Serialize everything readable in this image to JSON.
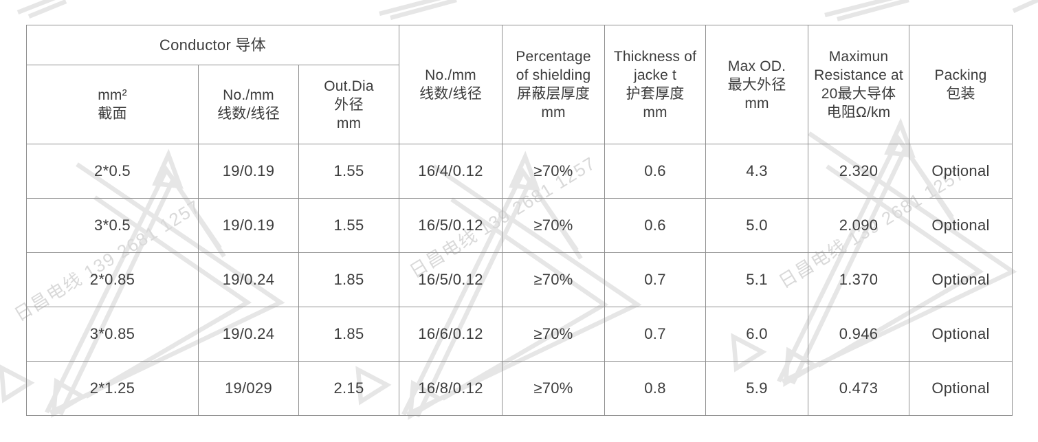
{
  "watermark": {
    "text": "日昌电线 139 2681 1257",
    "line_color": "#e6e6e6",
    "text_color": "#d9d9d9"
  },
  "table": {
    "border_color": "#8f8f8f",
    "text_color": "#3c3c3c",
    "header": {
      "conductor_group": "Conductor 导体",
      "columns": [
        {
          "lines": [
            "mm²",
            "截面"
          ]
        },
        {
          "lines": [
            "No./mm",
            "线数/线径"
          ]
        },
        {
          "lines": [
            "Out.Dia",
            "外径",
            "mm"
          ]
        },
        {
          "lines": [
            "No./mm",
            "线数/线径"
          ]
        },
        {
          "lines": [
            "Percentage",
            "of shielding",
            "屏蔽层厚度",
            "mm"
          ]
        },
        {
          "lines": [
            "Thickness of",
            "jacke t",
            "护套厚度",
            "mm"
          ]
        },
        {
          "lines": [
            "Max OD.",
            "最大外径",
            "mm"
          ]
        },
        {
          "lines": [
            "Maximun",
            "Resistance at",
            "20最大导体",
            "电阻Ω/km"
          ]
        },
        {
          "lines": [
            "Packing",
            "包装"
          ]
        }
      ]
    },
    "rows": [
      [
        "2*0.5",
        "19/0.19",
        "1.55",
        "16/4/0.12",
        "≥70%",
        "0.6",
        "4.3",
        "2.320",
        "Optional"
      ],
      [
        "3*0.5",
        "19/0.19",
        "1.55",
        "16/5/0.12",
        "≥70%",
        "0.6",
        "5.0",
        "2.090",
        "Optional"
      ],
      [
        "2*0.85",
        "19/0.24",
        "1.85",
        "16/5/0.12",
        "≥70%",
        "0.7",
        "5.1",
        "1.370",
        "Optional"
      ],
      [
        "3*0.85",
        "19/0.24",
        "1.85",
        "16/6/0.12",
        "≥70%",
        "0.7",
        "6.0",
        "0.946",
        "Optional"
      ],
      [
        "2*1.25",
        "19/029",
        "2.15",
        "16/8/0.12",
        "≥70%",
        "0.8",
        "5.9",
        "0.473",
        "Optional"
      ]
    ]
  }
}
